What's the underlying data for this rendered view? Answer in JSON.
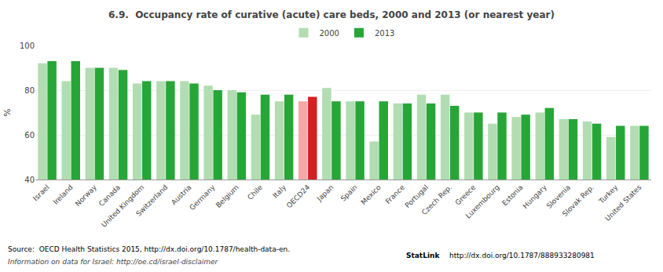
{
  "chart_data": {
    "type": "bar",
    "title": "6.9.  Occupancy rate of curative (acute) care beds, 2000 and 2013 (or nearest year)",
    "ylabel": "%",
    "categories": [
      "Israel",
      "Ireland",
      "Norway",
      "Canada",
      "United Kingdom",
      "Switzerland",
      "Austria",
      "Germany",
      "Belgium",
      "Chile",
      "Italy",
      "OECD24",
      "Japan",
      "Spain",
      "Mexico",
      "France",
      "Portugal",
      "Czech Rep.",
      "Greece",
      "Luxembourg",
      "Estonia",
      "Hungary",
      "Slovenia",
      "Slovak Rep.",
      "Turkey",
      "United States"
    ],
    "series": [
      {
        "name": "2000",
        "color": "#b2ddb2",
        "colors": [
          "#b2ddb2",
          "#b2ddb2",
          "#b2ddb2",
          "#b2ddb2",
          "#b2ddb2",
          "#b2ddb2",
          "#b2ddb2",
          "#b2ddb2",
          "#b2ddb2",
          "#b2ddb2",
          "#b2ddb2",
          "#f4a9a8",
          "#b2ddb2",
          "#b2ddb2",
          "#b2ddb2",
          "#b2ddb2",
          "#b2ddb2",
          "#b2ddb2",
          "#b2ddb2",
          "#b2ddb2",
          "#b2ddb2",
          "#b2ddb2",
          "#b2ddb2",
          "#b2ddb2",
          "#b2ddb2",
          "#b2ddb2"
        ],
        "values": [
          92,
          84,
          90,
          90,
          83,
          84,
          84,
          82,
          80,
          69,
          75,
          75,
          81,
          75,
          57,
          74,
          78,
          78,
          70,
          65,
          68,
          70,
          67,
          66,
          59,
          64
        ]
      },
      {
        "name": "2013",
        "color": "#27a638",
        "colors": [
          "#27a638",
          "#27a638",
          "#27a638",
          "#27a638",
          "#27a638",
          "#27a638",
          "#27a638",
          "#27a638",
          "#27a638",
          "#27a638",
          "#27a638",
          "#d42020",
          "#27a638",
          "#27a638",
          "#27a638",
          "#27a638",
          "#27a638",
          "#27a638",
          "#27a638",
          "#27a638",
          "#27a638",
          "#27a638",
          "#27a638",
          "#27a638",
          "#27a638",
          "#27a638"
        ],
        "values": [
          93,
          93,
          90,
          89,
          84,
          84,
          83,
          80,
          79,
          78,
          78,
          77,
          75,
          75,
          75,
          74,
          74,
          73,
          70,
          70,
          69,
          72,
          67,
          65,
          64,
          64
        ]
      }
    ],
    "ylim": [
      40,
      100
    ],
    "yticks": [
      40,
      60,
      80,
      100
    ],
    "grid": true,
    "legend": "top",
    "annotations": [
      "Source:  OECD Health Statistics 2015, http://dx.doi.org/10.1787/health-data-en.",
      "Information on data for Israel: http://oe.cd/israel-disclaimer",
      "StatLink",
      "http://dx.doi.org/10.1787/888933280981"
    ]
  }
}
